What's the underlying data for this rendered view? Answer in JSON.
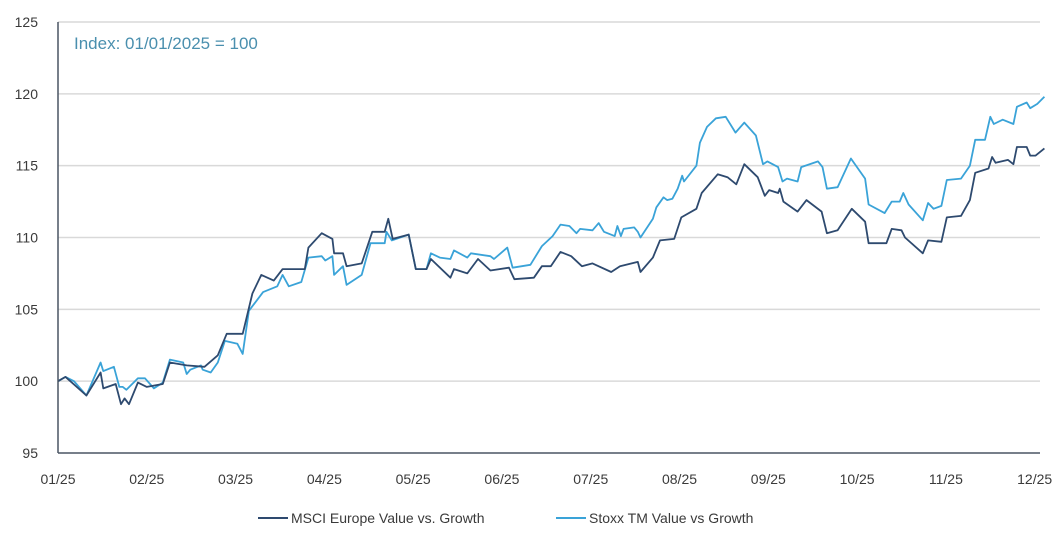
{
  "chart_data": {
    "type": "line",
    "title": "",
    "annotation": "Index: 01/01/2025 = 100",
    "xlabel": "",
    "ylabel": "",
    "ylim": [
      95,
      125
    ],
    "yticks": [
      95,
      100,
      105,
      110,
      115,
      120,
      125
    ],
    "xlim": [
      0,
      11.06
    ],
    "x_unit": "months since 01/2025",
    "xtick_labels": [
      "01/25",
      "02/25",
      "03/25",
      "04/25",
      "05/25",
      "06/25",
      "07/25",
      "08/25",
      "09/25",
      "10/25",
      "11/25",
      "12/25"
    ],
    "grid": true,
    "legend_position": "bottom-center",
    "series": [
      {
        "name": "MSCI Europe Value vs. Growth",
        "color": "#2e4a6f",
        "points": [
          [
            0,
            100
          ],
          [
            0.085,
            100.3
          ],
          [
            0.32,
            99.0
          ],
          [
            0.48,
            100.6
          ],
          [
            0.51,
            99.5
          ],
          [
            0.65,
            99.8
          ],
          [
            0.71,
            98.4
          ],
          [
            0.75,
            98.8
          ],
          [
            0.8,
            98.4
          ],
          [
            0.9,
            99.9
          ],
          [
            1.0,
            99.6
          ],
          [
            1.18,
            99.8
          ],
          [
            1.26,
            101.3
          ],
          [
            1.45,
            101.1
          ],
          [
            1.65,
            101.0
          ],
          [
            1.8,
            101.8
          ],
          [
            1.9,
            103.3
          ],
          [
            2.08,
            103.3
          ],
          [
            2.19,
            106.1
          ],
          [
            2.29,
            107.4
          ],
          [
            2.43,
            107.0
          ],
          [
            2.53,
            107.8
          ],
          [
            2.66,
            107.8
          ],
          [
            2.78,
            107.8
          ],
          [
            2.82,
            109.3
          ],
          [
            2.97,
            110.3
          ],
          [
            3.09,
            109.9
          ],
          [
            3.11,
            108.9
          ],
          [
            3.21,
            108.9
          ],
          [
            3.25,
            108.0
          ],
          [
            3.42,
            108.2
          ],
          [
            3.54,
            110.4
          ],
          [
            3.68,
            110.4
          ],
          [
            3.72,
            111.3
          ],
          [
            3.77,
            109.9
          ],
          [
            3.95,
            110.2
          ],
          [
            4.03,
            107.8
          ],
          [
            4.15,
            107.8
          ],
          [
            4.2,
            108.5
          ],
          [
            4.42,
            107.2
          ],
          [
            4.46,
            107.8
          ],
          [
            4.61,
            107.5
          ],
          [
            4.73,
            108.5
          ],
          [
            4.87,
            107.7
          ],
          [
            5.08,
            107.9
          ],
          [
            5.14,
            107.1
          ],
          [
            5.36,
            107.2
          ],
          [
            5.45,
            108.0
          ],
          [
            5.55,
            108.0
          ],
          [
            5.66,
            109.0
          ],
          [
            5.78,
            108.7
          ],
          [
            5.9,
            108.0
          ],
          [
            6.02,
            108.2
          ],
          [
            6.23,
            107.6
          ],
          [
            6.33,
            108.0
          ],
          [
            6.53,
            108.3
          ],
          [
            6.56,
            107.6
          ],
          [
            6.7,
            108.6
          ],
          [
            6.78,
            109.8
          ],
          [
            6.94,
            109.9
          ],
          [
            7.02,
            111.4
          ],
          [
            7.19,
            112.0
          ],
          [
            7.25,
            113.1
          ],
          [
            7.43,
            114.4
          ],
          [
            7.54,
            114.2
          ],
          [
            7.64,
            113.7
          ],
          [
            7.73,
            115.1
          ],
          [
            7.88,
            114.2
          ],
          [
            7.96,
            112.9
          ],
          [
            8.01,
            113.3
          ],
          [
            8.11,
            113.1
          ],
          [
            8.13,
            113.4
          ],
          [
            8.17,
            112.5
          ],
          [
            8.33,
            111.8
          ],
          [
            8.43,
            112.6
          ],
          [
            8.6,
            111.8
          ],
          [
            8.66,
            110.3
          ],
          [
            8.78,
            110.5
          ],
          [
            8.94,
            112.0
          ],
          [
            9.09,
            111.1
          ],
          [
            9.13,
            109.6
          ],
          [
            9.33,
            109.6
          ],
          [
            9.39,
            110.6
          ],
          [
            9.5,
            110.5
          ],
          [
            9.54,
            110.0
          ],
          [
            9.74,
            108.9
          ],
          [
            9.8,
            109.8
          ],
          [
            9.95,
            109.7
          ],
          [
            10.01,
            111.4
          ],
          [
            10.17,
            111.5
          ],
          [
            10.27,
            112.6
          ],
          [
            10.33,
            114.5
          ],
          [
            10.48,
            114.8
          ],
          [
            10.52,
            115.6
          ],
          [
            10.56,
            115.2
          ],
          [
            10.7,
            115.4
          ],
          [
            10.76,
            115.1
          ],
          [
            10.8,
            116.3
          ],
          [
            10.91,
            116.3
          ],
          [
            10.95,
            115.7
          ],
          [
            11.01,
            115.7
          ],
          [
            11.11,
            116.2
          ]
        ]
      },
      {
        "name": "Stoxx TM Value vs Growth",
        "color": "#3aa3d8",
        "points": [
          [
            0,
            100
          ],
          [
            0.085,
            100.3
          ],
          [
            0.18,
            100
          ],
          [
            0.32,
            99.0
          ],
          [
            0.48,
            101.3
          ],
          [
            0.51,
            100.7
          ],
          [
            0.63,
            101.0
          ],
          [
            0.69,
            99.6
          ],
          [
            0.73,
            99.6
          ],
          [
            0.77,
            99.4
          ],
          [
            0.9,
            100.2
          ],
          [
            0.98,
            100.2
          ],
          [
            1.08,
            99.5
          ],
          [
            1.18,
            99.9
          ],
          [
            1.26,
            101.5
          ],
          [
            1.41,
            101.3
          ],
          [
            1.45,
            100.5
          ],
          [
            1.49,
            100.8
          ],
          [
            1.61,
            101.1
          ],
          [
            1.63,
            100.8
          ],
          [
            1.72,
            100.6
          ],
          [
            1.8,
            101.3
          ],
          [
            1.88,
            102.8
          ],
          [
            2.02,
            102.6
          ],
          [
            2.08,
            101.9
          ],
          [
            2.15,
            104.9
          ],
          [
            2.31,
            106.2
          ],
          [
            2.47,
            106.6
          ],
          [
            2.53,
            107.4
          ],
          [
            2.6,
            106.6
          ],
          [
            2.74,
            106.9
          ],
          [
            2.82,
            108.6
          ],
          [
            2.97,
            108.7
          ],
          [
            3.01,
            108.4
          ],
          [
            3.09,
            108.7
          ],
          [
            3.11,
            107.4
          ],
          [
            3.21,
            108.0
          ],
          [
            3.25,
            106.7
          ],
          [
            3.42,
            107.4
          ],
          [
            3.52,
            109.6
          ],
          [
            3.68,
            109.6
          ],
          [
            3.7,
            110.4
          ],
          [
            3.76,
            109.8
          ],
          [
            3.95,
            110.2
          ],
          [
            4.03,
            107.8
          ],
          [
            4.15,
            107.8
          ],
          [
            4.2,
            108.9
          ],
          [
            4.3,
            108.6
          ],
          [
            4.42,
            108.5
          ],
          [
            4.46,
            109.1
          ],
          [
            4.61,
            108.6
          ],
          [
            4.65,
            108.9
          ],
          [
            4.87,
            108.7
          ],
          [
            4.91,
            108.5
          ],
          [
            5.06,
            109.3
          ],
          [
            5.12,
            107.9
          ],
          [
            5.32,
            108.1
          ],
          [
            5.45,
            109.4
          ],
          [
            5.57,
            110.1
          ],
          [
            5.66,
            110.9
          ],
          [
            5.76,
            110.8
          ],
          [
            5.84,
            110.3
          ],
          [
            5.88,
            110.6
          ],
          [
            6.02,
            110.5
          ],
          [
            6.09,
            111.0
          ],
          [
            6.15,
            110.4
          ],
          [
            6.27,
            110.1
          ],
          [
            6.3,
            110.8
          ],
          [
            6.34,
            110.1
          ],
          [
            6.37,
            110.6
          ],
          [
            6.49,
            110.7
          ],
          [
            6.53,
            110.4
          ],
          [
            6.56,
            110.0
          ],
          [
            6.7,
            111.3
          ],
          [
            6.74,
            112.1
          ],
          [
            6.82,
            112.8
          ],
          [
            6.86,
            112.6
          ],
          [
            6.92,
            112.7
          ],
          [
            6.98,
            113.4
          ],
          [
            7.03,
            114.3
          ],
          [
            7.05,
            113.9
          ],
          [
            7.19,
            115.0
          ],
          [
            7.23,
            116.6
          ],
          [
            7.31,
            117.7
          ],
          [
            7.41,
            118.3
          ],
          [
            7.52,
            118.4
          ],
          [
            7.63,
            117.3
          ],
          [
            7.73,
            118.0
          ],
          [
            7.86,
            117.1
          ],
          [
            7.94,
            115.1
          ],
          [
            7.99,
            115.3
          ],
          [
            8.11,
            114.9
          ],
          [
            8.16,
            113.9
          ],
          [
            8.21,
            114.1
          ],
          [
            8.33,
            113.9
          ],
          [
            8.37,
            114.9
          ],
          [
            8.56,
            115.3
          ],
          [
            8.61,
            114.9
          ],
          [
            8.66,
            113.4
          ],
          [
            8.78,
            113.5
          ],
          [
            8.93,
            115.5
          ],
          [
            9.09,
            114.1
          ],
          [
            9.13,
            112.3
          ],
          [
            9.31,
            111.7
          ],
          [
            9.39,
            112.5
          ],
          [
            9.48,
            112.5
          ],
          [
            9.52,
            113.1
          ],
          [
            9.58,
            112.3
          ],
          [
            9.74,
            111.2
          ],
          [
            9.8,
            112.4
          ],
          [
            9.86,
            112.0
          ],
          [
            9.95,
            112.2
          ],
          [
            10.01,
            114.0
          ],
          [
            10.17,
            114.1
          ],
          [
            10.27,
            115.0
          ],
          [
            10.33,
            116.8
          ],
          [
            10.44,
            116.8
          ],
          [
            10.5,
            118.4
          ],
          [
            10.54,
            117.9
          ],
          [
            10.64,
            118.2
          ],
          [
            10.76,
            117.9
          ],
          [
            10.8,
            119.1
          ],
          [
            10.91,
            119.4
          ],
          [
            10.95,
            119.0
          ],
          [
            11.03,
            119.3
          ],
          [
            11.11,
            119.8
          ]
        ]
      }
    ]
  }
}
